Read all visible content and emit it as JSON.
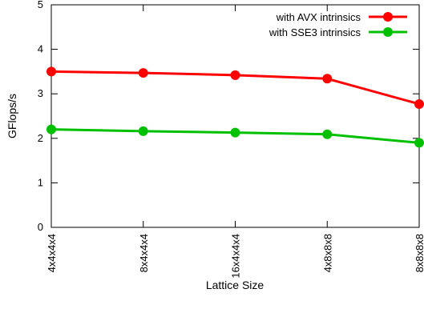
{
  "chart_data": {
    "type": "line",
    "title": "",
    "xlabel": "Lattice Size",
    "ylabel": "GFlops/s",
    "categories": [
      "4x4x4x4",
      "8x4x4x4",
      "16x4x4x4",
      "4x8x8x8",
      "8x8x8x8"
    ],
    "ylim": [
      0,
      5
    ],
    "yticks": [
      0,
      1,
      2,
      3,
      4,
      5
    ],
    "grid": false,
    "legend_position": "top-right",
    "series": [
      {
        "name": "with AVX intrinsics",
        "color": "#ff0000",
        "marker": "circle",
        "values": [
          3.5,
          3.47,
          3.42,
          3.34,
          2.77
        ]
      },
      {
        "name": "with SSE3 intrinsics",
        "color": "#00c000",
        "marker": "circle",
        "values": [
          2.2,
          2.16,
          2.13,
          2.09,
          1.9
        ]
      }
    ]
  }
}
